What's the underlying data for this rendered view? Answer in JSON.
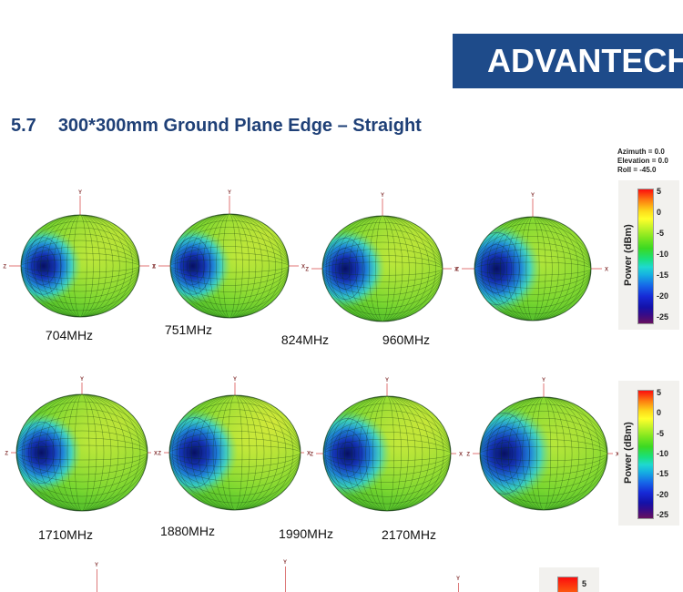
{
  "header": {
    "logo_text": "ADVANTECH",
    "section_number": "5.7",
    "section_title": "300*300mm Ground Plane Edge – Straight"
  },
  "orientation": {
    "lines": [
      "Azimuth = 0.0",
      "Elevation = 0.0",
      "Roll = -45.0"
    ]
  },
  "colorbar": {
    "axis_label": "Power (dBm)",
    "ticks": [
      "5",
      "0",
      "-5",
      "-10",
      "-15",
      "-20",
      "-25"
    ],
    "gradient_stops": [
      "#FB0D0D",
      "#FDD91A",
      "#3BD922",
      "#1FD9D0",
      "#1629D6",
      "#67105F"
    ]
  },
  "figures": {
    "row1": [
      {
        "label": "704MHz"
      },
      {
        "label": "751MHz"
      },
      {
        "label": "824MHz"
      },
      {
        "label": "960MHz"
      }
    ],
    "row2": [
      {
        "label": "1710MHz"
      },
      {
        "label": "1880MHz"
      },
      {
        "label": "1990MHz"
      },
      {
        "label": "2170MHz"
      }
    ]
  },
  "axis_labels": {
    "x": "X",
    "y": "Y",
    "z": "Z"
  },
  "row3_partial": {
    "y_axis_label": "Y",
    "colorbar_top_tick": "5"
  },
  "colors": {
    "logo_bg": "#1E4B8A",
    "heading_blue": "#1F4077",
    "axis_red": "#E07676",
    "pattern_body_green": "#72D52F",
    "pattern_dimple_blue": "#1433B4",
    "panel_gray": "#F2F1EE"
  }
}
